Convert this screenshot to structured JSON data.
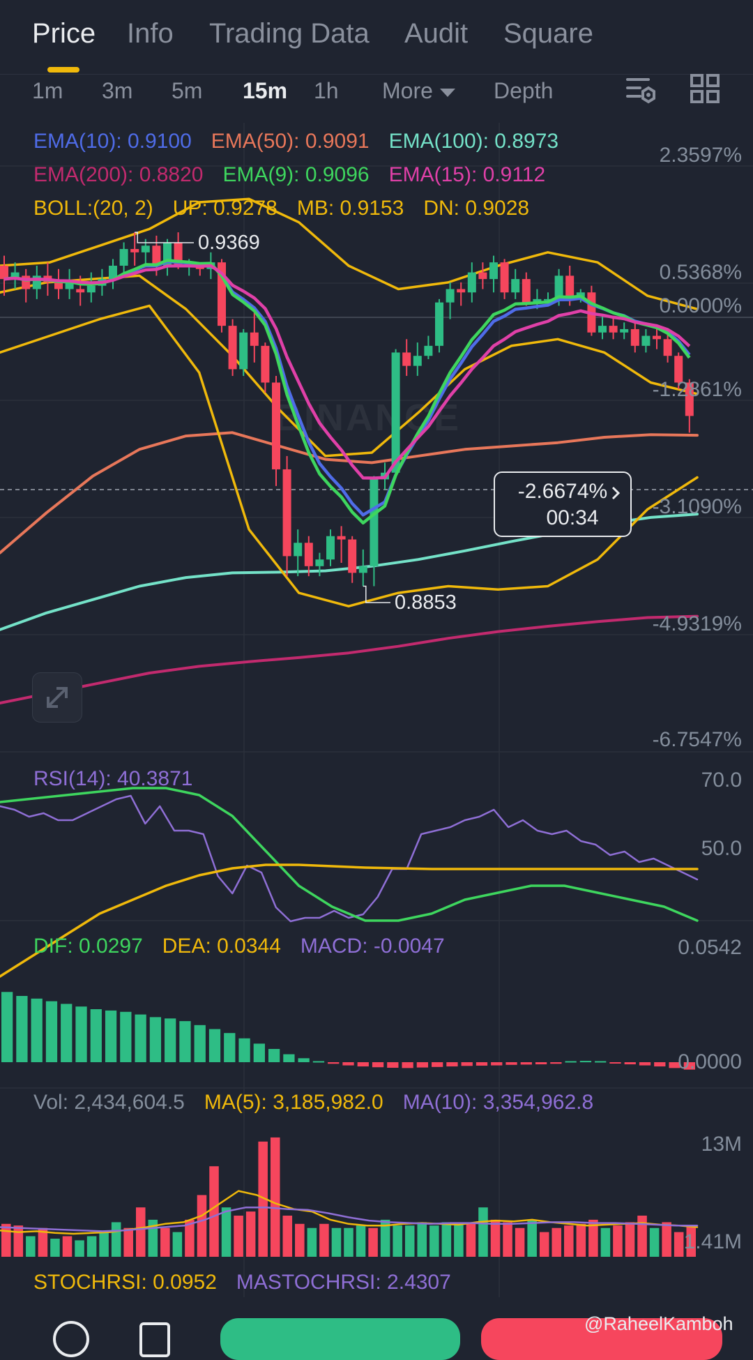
{
  "tabs": [
    {
      "label": "Price",
      "active": true
    },
    {
      "label": "Info",
      "active": false
    },
    {
      "label": "Trading Data",
      "active": false
    },
    {
      "label": "Audit",
      "active": false
    },
    {
      "label": "Square",
      "active": false
    }
  ],
  "intervals": [
    {
      "label": "1m",
      "active": false
    },
    {
      "label": "3m",
      "active": false
    },
    {
      "label": "5m",
      "active": false
    },
    {
      "label": "15m",
      "active": true
    },
    {
      "label": "1h",
      "active": false
    },
    {
      "label": "More",
      "active": false
    },
    {
      "label": "Depth",
      "active": false
    }
  ],
  "icons": {
    "settings": "chart-settings-icon",
    "layout": "grid-layout-icon",
    "expand": "expand-arrows-icon",
    "more_caret": "caret-down-icon",
    "chevron": "chevron-right-icon"
  },
  "colors": {
    "bg": "#1f2430",
    "up": "#2ebd85",
    "down": "#f6465d",
    "ema10": "#4f6ce8",
    "ema50": "#e8775a",
    "ema100": "#74e2c8",
    "ema200": "#c22a6e",
    "ema9": "#3ed65e",
    "ema15": "#e040a8",
    "boll": "#f0b90b",
    "rsi": "#8f6fd6",
    "dif": "#3ed65e",
    "dea": "#f0b90b",
    "macd": "#8f6fd6",
    "vol": "#848e9c",
    "ma5": "#f0b90b",
    "ma10": "#8f6fd6",
    "stoch": "#f0b90b"
  },
  "main_legend": {
    "ema10": "EMA(10): 0.9100",
    "ema50": "EMA(50): 0.9091",
    "ema100": "EMA(100): 0.8973",
    "ema200": "EMA(200): 0.8820",
    "ema9": "EMA(9): 0.9096",
    "ema15": "EMA(15): 0.9112",
    "boll": "BOLL:(20, 2)",
    "boll_up": "UP: 0.9278",
    "boll_mb": "MB: 0.9153",
    "boll_dn": "DN: 0.9028"
  },
  "price_axis": [
    "2.3597%",
    "0.5368%",
    "0.0000%",
    "-1.2861%",
    "-3.1090%",
    "-4.9319%",
    "-6.7547%"
  ],
  "high_label": "0.9369",
  "low_label": "0.8853",
  "current_tag": {
    "percent": "-2.6674%",
    "countdown": "00:34"
  },
  "watermark": "BINANCE",
  "rsi": {
    "legend": "RSI(14): 40.3871",
    "axis": [
      "70.0",
      "50.0"
    ],
    "values": [
      62,
      61,
      59,
      60,
      58,
      58,
      60,
      62,
      64,
      65,
      57,
      62,
      55,
      55,
      54,
      42,
      37,
      45,
      43,
      33,
      29,
      30,
      30,
      32,
      30,
      31,
      36,
      44,
      44,
      54,
      55,
      56,
      58,
      59,
      61,
      56,
      58,
      55,
      54,
      55,
      52,
      51,
      48,
      49,
      46,
      47,
      45,
      43,
      41
    ]
  },
  "macd": {
    "legend_dif": "DIF: 0.0297",
    "legend_dea": "DEA: 0.0344",
    "legend_macd": "MACD: -0.0047",
    "axis": [
      "0.0542",
      "0.0000"
    ],
    "dif": [
      0.044,
      0.0445,
      0.045,
      0.0455,
      0.046,
      0.046,
      0.045,
      0.042,
      0.037,
      0.032,
      0.029,
      0.027,
      0.027,
      0.028,
      0.03,
      0.031,
      0.032,
      0.032,
      0.031,
      0.03,
      0.029,
      0.027
    ],
    "dea": [
      0.019,
      0.022,
      0.025,
      0.028,
      0.03,
      0.032,
      0.0335,
      0.0345,
      0.035,
      0.035,
      0.0348,
      0.0346,
      0.0345,
      0.0344,
      0.0344,
      0.0344,
      0.0344,
      0.0344,
      0.0344,
      0.0344,
      0.0344,
      0.0344
    ],
    "hist": [
      0.0265,
      0.025,
      0.024,
      0.023,
      0.022,
      0.021,
      0.02,
      0.0195,
      0.019,
      0.018,
      0.017,
      0.0165,
      0.0155,
      0.014,
      0.0125,
      0.011,
      0.009,
      0.007,
      0.005,
      0.003,
      0.0015,
      0.0004,
      -0.0006,
      -0.0012,
      -0.0016,
      -0.0019,
      -0.0021,
      -0.0022,
      -0.002,
      -0.0018,
      -0.0016,
      -0.0014,
      -0.0013,
      -0.0012,
      -0.001,
      -0.0009,
      -0.0008,
      -0.0006,
      0.0004,
      0.0005,
      0.0004,
      -0.0005,
      -0.0008,
      -0.0012,
      -0.0016,
      -0.0022,
      -0.0028
    ]
  },
  "volume": {
    "legend_vol": "Vol: 2,434,604.5",
    "legend_ma5": "MA(5): 3,185,982.0",
    "legend_ma10": "MA(10): 3,354,962.8",
    "axis": [
      "13M",
      "1.41M"
    ],
    "bars": [
      [
        4,
        "down"
      ],
      [
        3.8,
        "down"
      ],
      [
        2.5,
        "up"
      ],
      [
        3.5,
        "down"
      ],
      [
        2.2,
        "up"
      ],
      [
        2.5,
        "down"
      ],
      [
        2.0,
        "up"
      ],
      [
        2.5,
        "up"
      ],
      [
        3.0,
        "up"
      ],
      [
        4.2,
        "up"
      ],
      [
        3.5,
        "down"
      ],
      [
        6.0,
        "down"
      ],
      [
        4.5,
        "up"
      ],
      [
        3.5,
        "down"
      ],
      [
        3.0,
        "up"
      ],
      [
        4.5,
        "down"
      ],
      [
        7.5,
        "down"
      ],
      [
        11.0,
        "down"
      ],
      [
        6.0,
        "up"
      ],
      [
        5.0,
        "down"
      ],
      [
        5.5,
        "down"
      ],
      [
        14.0,
        "down"
      ],
      [
        14.5,
        "down"
      ],
      [
        5.0,
        "down"
      ],
      [
        4.0,
        "down"
      ],
      [
        3.5,
        "up"
      ],
      [
        4.0,
        "down"
      ],
      [
        3.5,
        "up"
      ],
      [
        3.5,
        "up"
      ],
      [
        3.8,
        "up"
      ],
      [
        3.5,
        "down"
      ],
      [
        4.5,
        "up"
      ],
      [
        3.8,
        "up"
      ],
      [
        3.8,
        "up"
      ],
      [
        4.2,
        "up"
      ],
      [
        3.8,
        "up"
      ],
      [
        4.2,
        "up"
      ],
      [
        4.0,
        "up"
      ],
      [
        4.2,
        "down"
      ],
      [
        6.0,
        "up"
      ],
      [
        4.5,
        "down"
      ],
      [
        4.2,
        "down"
      ],
      [
        3.5,
        "down"
      ],
      [
        4.5,
        "up"
      ],
      [
        3.0,
        "down"
      ],
      [
        3.5,
        "down"
      ],
      [
        3.8,
        "down"
      ],
      [
        4.0,
        "down"
      ],
      [
        4.5,
        "down"
      ],
      [
        3.5,
        "up"
      ],
      [
        3.8,
        "down"
      ],
      [
        4.2,
        "down"
      ],
      [
        5.0,
        "down"
      ],
      [
        3.5,
        "up"
      ],
      [
        4.2,
        "down"
      ],
      [
        3.0,
        "down"
      ],
      [
        3.8,
        "down"
      ]
    ],
    "ma5": [
      3.2,
      3.0,
      3.1,
      2.9,
      2.8,
      2.9,
      3.0,
      3.3,
      3.6,
      4.0,
      4.2,
      5.0,
      6.5,
      8.0,
      7.5,
      6.5,
      5.8,
      5.5,
      4.5,
      4.0,
      3.8,
      3.8,
      4.0,
      4.1,
      4.0,
      3.9,
      4.2,
      4.4,
      4.3,
      4.5,
      4.2,
      4.0,
      3.8,
      3.9,
      4.0,
      4.1,
      3.9,
      3.8,
      3.6
    ],
    "ma10": [
      3.6,
      3.5,
      3.4,
      3.3,
      3.2,
      3.1,
      3.2,
      3.4,
      3.6,
      3.8,
      4.5,
      5.5,
      6.0,
      6.0,
      5.8,
      5.7,
      5.3,
      4.8,
      4.4,
      4.2,
      4.1,
      4.0,
      4.1,
      4.1,
      4.0,
      4.0,
      4.1,
      4.2,
      4.2,
      4.1,
      4.1,
      4.0,
      3.9,
      3.8,
      3.8
    ]
  },
  "stochrsi": {
    "legend_k": "STOCHRSI: 0.0952",
    "legend_d": "MASTOCHRSI: 2.4307"
  },
  "credit": "@RaheelKamboh",
  "chart_data": {
    "type": "line",
    "title": "",
    "interval": "15m",
    "ylim_percent": [
      -6.7547,
      2.3597
    ],
    "candles": [
      [
        0.9345,
        0.9325,
        0.936,
        0.93
      ],
      [
        0.9325,
        0.9335,
        0.935,
        0.931
      ],
      [
        0.933,
        0.931,
        0.934,
        0.929
      ],
      [
        0.931,
        0.933,
        0.9345,
        0.9295
      ],
      [
        0.933,
        0.932,
        0.935,
        0.93
      ],
      [
        0.932,
        0.931,
        0.934,
        0.9295
      ],
      [
        0.931,
        0.932,
        0.934,
        0.9295
      ],
      [
        0.931,
        0.9305,
        0.933,
        0.9285
      ],
      [
        0.9305,
        0.9315,
        0.9335,
        0.929
      ],
      [
        0.9315,
        0.9325,
        0.934,
        0.93
      ],
      [
        0.9325,
        0.9345,
        0.9355,
        0.931
      ],
      [
        0.9345,
        0.937,
        0.938,
        0.933
      ],
      [
        0.937,
        0.9365,
        0.9395,
        0.9345
      ],
      [
        0.9365,
        0.9375,
        0.9385,
        0.9345
      ],
      [
        0.9375,
        0.9345,
        0.939,
        0.933
      ],
      [
        0.9345,
        0.938,
        0.9385,
        0.933
      ],
      [
        0.938,
        0.9345,
        0.9395,
        0.934
      ],
      [
        0.9345,
        0.9345,
        0.9355,
        0.933
      ],
      [
        0.9345,
        0.934,
        0.935,
        0.933
      ],
      [
        0.934,
        0.935,
        0.9365,
        0.9325
      ],
      [
        0.935,
        0.9255,
        0.9355,
        0.9245
      ],
      [
        0.9255,
        0.919,
        0.9265,
        0.918
      ],
      [
        0.919,
        0.9245,
        0.925,
        0.918
      ],
      [
        0.9245,
        0.9225,
        0.928,
        0.92
      ],
      [
        0.9225,
        0.917,
        0.923,
        0.9155
      ],
      [
        0.917,
        0.904,
        0.918,
        0.9015
      ],
      [
        0.904,
        0.891,
        0.906,
        0.888
      ],
      [
        0.891,
        0.893,
        0.895,
        0.888
      ],
      [
        0.893,
        0.8895,
        0.894,
        0.888
      ],
      [
        0.8895,
        0.8905,
        0.8915,
        0.888
      ],
      [
        0.8905,
        0.894,
        0.895,
        0.8895
      ],
      [
        0.894,
        0.8935,
        0.8955,
        0.89
      ],
      [
        0.8935,
        0.8885,
        0.894,
        0.887
      ],
      [
        0.8885,
        0.8895,
        0.892,
        0.8865
      ],
      [
        0.8895,
        0.9025,
        0.903,
        0.8865
      ],
      [
        0.9025,
        0.9035,
        0.905,
        0.901
      ],
      [
        0.9035,
        0.9215,
        0.922,
        0.9035
      ],
      [
        0.9215,
        0.9195,
        0.9235,
        0.918
      ],
      [
        0.9195,
        0.921,
        0.923,
        0.918
      ],
      [
        0.921,
        0.9225,
        0.924,
        0.9205
      ],
      [
        0.9225,
        0.929,
        0.9295,
        0.9215
      ],
      [
        0.929,
        0.931,
        0.932,
        0.9265
      ],
      [
        0.931,
        0.9305,
        0.932,
        0.9285
      ],
      [
        0.9305,
        0.9335,
        0.935,
        0.929
      ],
      [
        0.9335,
        0.9325,
        0.935,
        0.931
      ],
      [
        0.9325,
        0.935,
        0.936,
        0.9305
      ],
      [
        0.935,
        0.9305,
        0.9355,
        0.9295
      ],
      [
        0.9305,
        0.9325,
        0.934,
        0.9295
      ],
      [
        0.9325,
        0.929,
        0.9335,
        0.9285
      ],
      [
        0.929,
        0.9295,
        0.931,
        0.928
      ],
      [
        0.9295,
        0.9295,
        0.9305,
        0.9285
      ],
      [
        0.9295,
        0.933,
        0.934,
        0.9285
      ],
      [
        0.933,
        0.9295,
        0.9345,
        0.9285
      ],
      [
        0.9295,
        0.9305,
        0.931,
        0.929
      ],
      [
        0.9305,
        0.9245,
        0.9315,
        0.924
      ],
      [
        0.9245,
        0.9255,
        0.927,
        0.9235
      ],
      [
        0.9255,
        0.9245,
        0.927,
        0.9235
      ],
      [
        0.9245,
        0.925,
        0.926,
        0.9235
      ],
      [
        0.925,
        0.9225,
        0.926,
        0.9215
      ],
      [
        0.9225,
        0.924,
        0.925,
        0.9215
      ],
      [
        0.924,
        0.9235,
        0.9255,
        0.922
      ],
      [
        0.9235,
        0.921,
        0.9245,
        0.92
      ],
      [
        0.921,
        0.917,
        0.9215,
        0.916
      ],
      [
        0.917,
        0.912,
        0.9175,
        0.9095
      ]
    ],
    "ema100_path": [
      0.88,
      0.8825,
      0.8845,
      0.8865,
      0.8878,
      0.8885,
      0.8886,
      0.8888,
      0.8895,
      0.8905,
      0.8918,
      0.8932,
      0.8945,
      0.8958,
      0.8968,
      0.8973
    ],
    "ema200_path": [
      0.869,
      0.8705,
      0.872,
      0.8735,
      0.8745,
      0.8752,
      0.8758,
      0.8765,
      0.8775,
      0.8787,
      0.8797,
      0.8805,
      0.8812,
      0.8818,
      0.882
    ],
    "ema50_path": [
      0.8915,
      0.8975,
      0.903,
      0.907,
      0.909,
      0.9095,
      0.9075,
      0.9055,
      0.905,
      0.906,
      0.907,
      0.9075,
      0.908,
      0.9088,
      0.9092,
      0.9091
    ],
    "boll_upper_path": [
      0.9345,
      0.935,
      0.9375,
      0.94,
      0.944,
      0.9445,
      0.941,
      0.9345,
      0.931,
      0.932,
      0.9345,
      0.9365,
      0.935,
      0.93,
      0.928
    ],
    "boll_mid_path": [
      0.9305,
      0.932,
      0.9325,
      0.933,
      0.928,
      0.921,
      0.913,
      0.906,
      0.9065,
      0.9125,
      0.919,
      0.9225,
      0.9235,
      0.9215,
      0.917,
      0.9153
    ],
    "boll_lower_path": [
      0.9215,
      0.924,
      0.9265,
      0.9285,
      0.9185,
      0.895,
      0.8855,
      0.8835,
      0.8855,
      0.8865,
      0.886,
      0.8865,
      0.8905,
      0.898,
      0.9028
    ]
  }
}
